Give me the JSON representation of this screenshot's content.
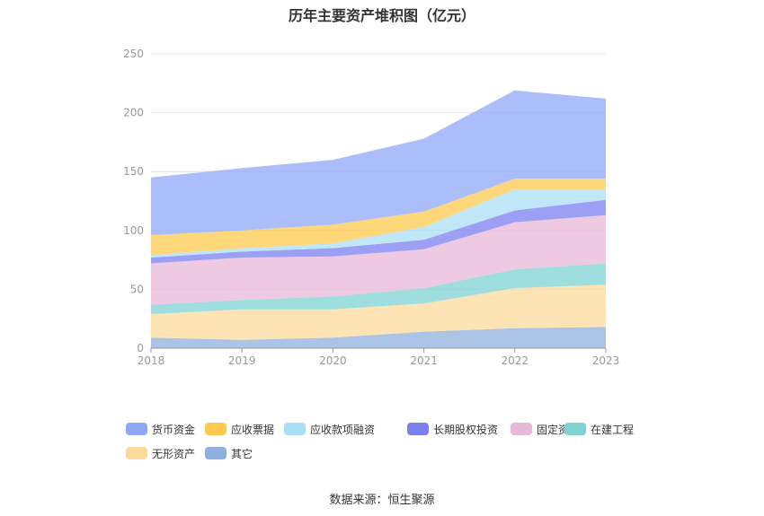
{
  "title": "历年主要资产堆积图（亿元）",
  "source": "数据来源：恒生聚源",
  "chart_data": {
    "type": "area",
    "stacked": true,
    "title": "历年主要资产堆积图（亿元）",
    "xlabel": "",
    "ylabel": "",
    "ylim": [
      0,
      250
    ],
    "yticks": [
      0,
      50,
      100,
      150,
      200,
      250
    ],
    "grid": true,
    "legend_position": "bottom",
    "categories": [
      "2018",
      "2019",
      "2020",
      "2021",
      "2022",
      "2023"
    ],
    "series": [
      {
        "name": "其它",
        "color": "#8fb0dc",
        "values": [
          9,
          7,
          9,
          14,
          17,
          18
        ]
      },
      {
        "name": "无形资产",
        "color": "#fdd99b",
        "values": [
          20,
          26,
          24,
          24,
          34,
          36
        ]
      },
      {
        "name": "在建工程",
        "color": "#7fd3d3",
        "values": [
          8,
          8,
          11,
          13,
          16,
          18
        ]
      },
      {
        "name": "固定资产",
        "color": "#e8b8d8",
        "values": [
          35,
          36,
          34,
          33,
          40,
          41
        ]
      },
      {
        "name": "长期股权投资",
        "color": "#7b7ff0",
        "values": [
          5,
          5,
          7,
          8,
          10,
          13
        ]
      },
      {
        "name": "应收款项融资",
        "color": "#a9dff5",
        "values": [
          2,
          3,
          4,
          11,
          18,
          9
        ]
      },
      {
        "name": "应收票据",
        "color": "#fec94e",
        "values": [
          17,
          15,
          16,
          13,
          9,
          9
        ]
      },
      {
        "name": "货币资金",
        "color": "#8fa8f8",
        "values": [
          49,
          53,
          55,
          62,
          75,
          68
        ]
      }
    ]
  },
  "legend": [
    {
      "label": "货币资金",
      "color": "#8fa8f8"
    },
    {
      "label": "应收票据",
      "color": "#fec94e"
    },
    {
      "label": "应收款项融资",
      "color": "#a9dff5"
    },
    {
      "label": "长期股权投资",
      "color": "#7b7ff0"
    },
    {
      "label": "固定资产",
      "color": "#e8b8d8"
    },
    {
      "label": "在建工程",
      "color": "#7fd3d3"
    },
    {
      "label": "无形资产",
      "color": "#fdd99b"
    },
    {
      "label": "其它",
      "color": "#8fb0dc"
    }
  ]
}
